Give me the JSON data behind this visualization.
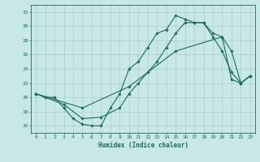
{
  "title": "",
  "xlabel": "Humidex (Indice chaleur)",
  "xlim": [
    -0.5,
    23.5
  ],
  "ylim": [
    15.0,
    33.0
  ],
  "xticks": [
    0,
    1,
    2,
    3,
    4,
    5,
    6,
    7,
    8,
    9,
    10,
    11,
    12,
    13,
    14,
    15,
    16,
    17,
    18,
    19,
    20,
    21,
    22,
    23
  ],
  "yticks": [
    16,
    18,
    20,
    22,
    24,
    26,
    28,
    30,
    32
  ],
  "bg_color": "#c8e8e8",
  "grid_color": "#aacece",
  "line_color": "#1a6b5a",
  "line1_x": [
    0,
    1,
    2,
    3,
    4,
    5,
    6,
    7,
    8,
    9,
    10,
    11,
    12,
    13,
    14,
    15,
    16,
    17,
    18,
    19,
    20,
    21,
    22,
    23
  ],
  "line1_y": [
    20.5,
    20.0,
    20.0,
    18.5,
    17.0,
    16.2,
    16.0,
    16.0,
    18.5,
    20.5,
    24.0,
    25.0,
    27.0,
    29.0,
    29.5,
    31.5,
    31.0,
    30.5,
    30.5,
    28.5,
    26.5,
    23.5,
    22.0,
    23.0
  ],
  "line2_x": [
    0,
    1,
    3,
    5,
    7,
    9,
    10,
    11,
    12,
    13,
    14,
    15,
    16,
    17,
    18,
    19,
    20,
    21,
    22,
    23
  ],
  "line2_y": [
    20.5,
    20.0,
    19.0,
    17.0,
    17.2,
    18.5,
    20.5,
    22.0,
    23.5,
    25.0,
    27.0,
    29.0,
    30.5,
    30.5,
    30.5,
    29.0,
    28.5,
    26.5,
    22.0,
    23.0
  ],
  "line3_x": [
    0,
    5,
    10,
    15,
    20,
    21,
    22,
    23
  ],
  "line3_y": [
    20.5,
    18.5,
    21.5,
    26.5,
    28.5,
    22.5,
    22.0,
    23.0
  ]
}
